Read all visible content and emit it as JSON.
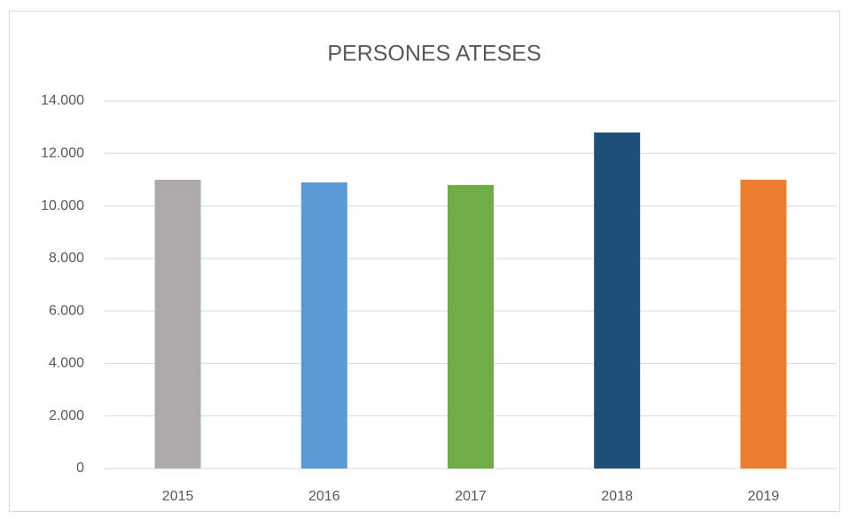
{
  "chart_data": {
    "type": "bar",
    "title": "PERSONES ATESES",
    "categories": [
      "2015",
      "2016",
      "2017",
      "2018",
      "2019"
    ],
    "values": [
      11000,
      10900,
      10800,
      12800,
      11000
    ],
    "colors": [
      "#aeaaaa",
      "#5b9bd5",
      "#70ad47",
      "#1f4e79",
      "#ed7d31"
    ],
    "ylim": [
      0,
      14000
    ],
    "yticks": [
      0,
      {
        "value": 2000,
        "label": "2.000"
      },
      {
        "value": 4000,
        "label": "4.000"
      },
      {
        "value": 6000,
        "label": "6.000"
      },
      {
        "value": 8000,
        "label": "8.000"
      },
      {
        "value": 10000,
        "label": "10.000"
      },
      {
        "value": 12000,
        "label": "12.000"
      },
      {
        "value": 14000,
        "label": "14.000"
      }
    ],
    "grid": true
  }
}
